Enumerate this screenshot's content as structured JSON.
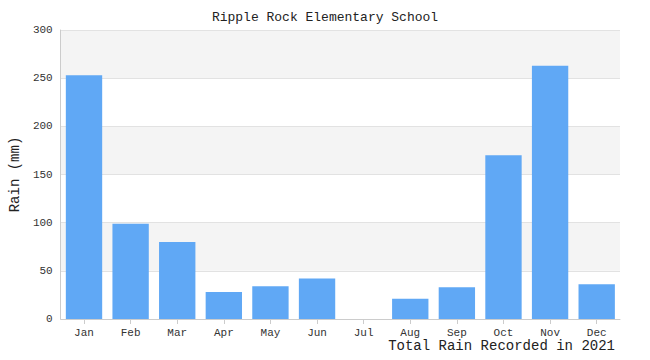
{
  "chart_data": {
    "type": "bar",
    "title": "Ripple Rock Elementary School",
    "x_label": "Total Rain Recorded in 2021",
    "y_label": "Rain (mm)",
    "categories": [
      "Jan",
      "Feb",
      "Mar",
      "Apr",
      "May",
      "Jun",
      "Jul",
      "Aug",
      "Sep",
      "Oct",
      "Nov",
      "Dec"
    ],
    "values": [
      253,
      99,
      80,
      28,
      34,
      42,
      0,
      21,
      33,
      170,
      263,
      36
    ],
    "color": "#60a8f5",
    "ylim": [
      0,
      300
    ],
    "yticks": [
      0,
      50,
      100,
      150,
      200,
      250,
      300
    ],
    "grid": true
  }
}
